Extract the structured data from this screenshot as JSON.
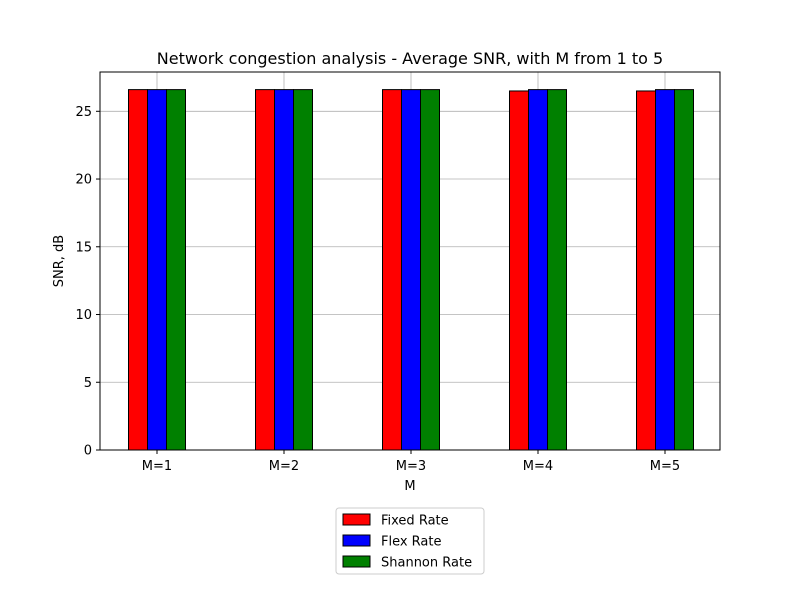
{
  "chart_data": {
    "type": "bar",
    "title": "Network congestion analysis - Average SNR, with M from 1 to 5",
    "xlabel": "M",
    "ylabel": "SNR, dB",
    "categories": [
      "M=1",
      "M=2",
      "M=3",
      "M=4",
      "M=5"
    ],
    "series": [
      {
        "name": "Fixed Rate",
        "color": "#ff0000",
        "values": [
          26.6,
          26.6,
          26.6,
          26.5,
          26.5
        ]
      },
      {
        "name": "Flex Rate",
        "color": "#0000ff",
        "values": [
          26.6,
          26.6,
          26.6,
          26.6,
          26.6
        ]
      },
      {
        "name": "Shannon Rate",
        "color": "#008000",
        "values": [
          26.6,
          26.6,
          26.6,
          26.6,
          26.6
        ]
      }
    ],
    "ylim": [
      0,
      27.9
    ],
    "yticks": [
      0,
      5,
      10,
      15,
      20,
      25
    ],
    "grid": true,
    "legend_position": "below-center"
  }
}
